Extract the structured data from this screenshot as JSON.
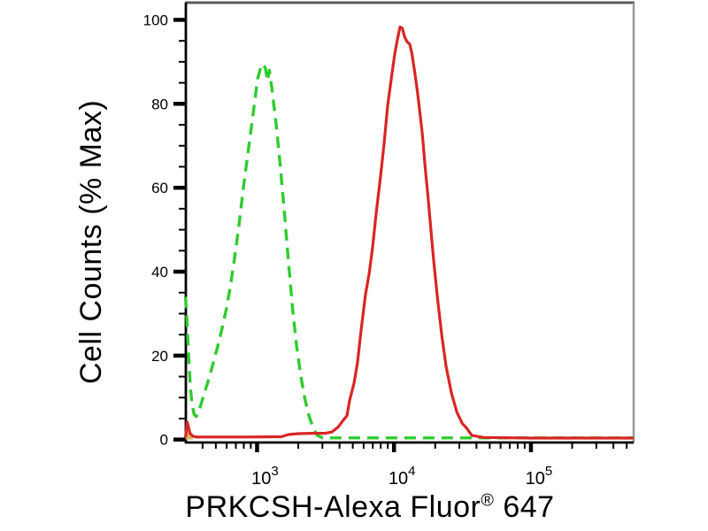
{
  "figure": {
    "background": "#ffffff",
    "axis_color": "#000000",
    "frame_top_color": "#5a5a5a",
    "frame_right_color": "#999999"
  },
  "chart_data": {
    "type": "line",
    "subtype": "flow-cytometry-histogram",
    "title": "",
    "xlabel": "PRKCSH-Alexa Fluor® 647",
    "xlabel_parts": {
      "main": "PRKCSH-Alexa Fluor",
      "registered": "®",
      "suffix": " 647"
    },
    "ylabel": "Cell Counts (% Max)",
    "x_scale": "log10",
    "xlim_log10": [
      2.48,
      5.75
    ],
    "ylim": [
      -0.7,
      104.1
    ],
    "grid": false,
    "legend": "none",
    "y_ticks_major": [
      0,
      20,
      40,
      60,
      80,
      100
    ],
    "y_minor_step": 5,
    "x_major_ticks": [
      {
        "value": 1000,
        "label_base": "10",
        "label_exp": "3"
      },
      {
        "value": 10000,
        "label_base": "10",
        "label_exp": "4"
      },
      {
        "value": 100000,
        "label_base": "10",
        "label_exp": "5"
      }
    ],
    "x_minor_ticks": [
      400,
      500,
      600,
      700,
      800,
      900,
      2000,
      3000,
      4000,
      5000,
      6000,
      7000,
      8000,
      9000,
      20000,
      30000,
      40000,
      50000,
      60000,
      70000,
      80000,
      90000,
      200000,
      300000,
      400000,
      500000
    ],
    "left_spike_fill_color": "#d9b36b",
    "series": [
      {
        "name": "green-dashed",
        "color": "#2ecc2e",
        "line_style": "dashed",
        "stroke_width": 3.4,
        "dash_pattern": "13 8",
        "points": [
          [
            300,
            34
          ],
          [
            307,
            29
          ],
          [
            313,
            23
          ],
          [
            320,
            17
          ],
          [
            327,
            12
          ],
          [
            335,
            8.5
          ],
          [
            347,
            6
          ],
          [
            360,
            5.5
          ],
          [
            375,
            6.5
          ],
          [
            390,
            8.5
          ],
          [
            407,
            10.5
          ],
          [
            450,
            15
          ],
          [
            490,
            19.5
          ],
          [
            524,
            23
          ],
          [
            560,
            27
          ],
          [
            600,
            31.5
          ],
          [
            635,
            36
          ],
          [
            684,
            43
          ],
          [
            738,
            51
          ],
          [
            794,
            60
          ],
          [
            856,
            68
          ],
          [
            922,
            76
          ],
          [
            965,
            81
          ],
          [
            1010,
            86
          ],
          [
            1060,
            88.5
          ],
          [
            1100,
            89.5
          ],
          [
            1150,
            88.5
          ],
          [
            1190,
            85.5
          ],
          [
            1230,
            88
          ],
          [
            1290,
            83
          ],
          [
            1380,
            75
          ],
          [
            1480,
            65
          ],
          [
            1585,
            54
          ],
          [
            1700,
            42
          ],
          [
            1820,
            31
          ],
          [
            1950,
            22
          ],
          [
            2090,
            15
          ],
          [
            2240,
            9.5
          ],
          [
            2400,
            5.5
          ],
          [
            2570,
            2.8
          ],
          [
            2750,
            1
          ],
          [
            3020,
            0.4
          ],
          [
            3980,
            0.4
          ],
          [
            10000,
            0.4
          ],
          [
            31600,
            0.4
          ],
          [
            100000,
            0.4
          ],
          [
            251000,
            0.4
          ],
          [
            562000,
            0.4
          ]
        ]
      },
      {
        "name": "red-solid",
        "color": "#d92525",
        "line_style": "solid",
        "stroke_width": 3.2,
        "dash_pattern": "",
        "points": [
          [
            300,
            0.5
          ],
          [
            305,
            2.5
          ],
          [
            309,
            4.2
          ],
          [
            316,
            3
          ],
          [
            324,
            1.5
          ],
          [
            340,
            0.8
          ],
          [
            363,
            0.6
          ],
          [
            500,
            0.6
          ],
          [
            800,
            0.6
          ],
          [
            1200,
            0.65
          ],
          [
            1514,
            0.7
          ],
          [
            1700,
            1.2
          ],
          [
            2000,
            1.4
          ],
          [
            2510,
            1.5
          ],
          [
            3160,
            1.5
          ],
          [
            3520,
            1.8
          ],
          [
            3910,
            3
          ],
          [
            4210,
            4.4
          ],
          [
            4540,
            5.7
          ],
          [
            4740,
            9.3
          ],
          [
            5110,
            13.5
          ],
          [
            5420,
            18.4
          ],
          [
            5750,
            26
          ],
          [
            6190,
            34.6
          ],
          [
            6580,
            39.5
          ],
          [
            6980,
            45.8
          ],
          [
            7410,
            54
          ],
          [
            7980,
            62.7
          ],
          [
            8470,
            70.5
          ],
          [
            8990,
            79.5
          ],
          [
            9530,
            85.8
          ],
          [
            10120,
            91.8
          ],
          [
            10590,
            95.4
          ],
          [
            11070,
            98.3
          ],
          [
            11500,
            98
          ],
          [
            11940,
            96
          ],
          [
            12450,
            94.8
          ],
          [
            13030,
            94.2
          ],
          [
            13500,
            92
          ],
          [
            14100,
            88
          ],
          [
            14800,
            83
          ],
          [
            15500,
            77.5
          ],
          [
            16070,
            73
          ],
          [
            16980,
            64
          ],
          [
            17800,
            57
          ],
          [
            18600,
            50
          ],
          [
            19500,
            42.5
          ],
          [
            20900,
            33
          ],
          [
            22400,
            24.5
          ],
          [
            24000,
            17.5
          ],
          [
            26300,
            11
          ],
          [
            28800,
            6.5
          ],
          [
            31600,
            3.8
          ],
          [
            33800,
            2.8
          ],
          [
            37000,
            1
          ],
          [
            45000,
            0.5
          ],
          [
            100000,
            0.35
          ],
          [
            251000,
            0.35
          ],
          [
            562000,
            0.35
          ]
        ]
      }
    ]
  }
}
